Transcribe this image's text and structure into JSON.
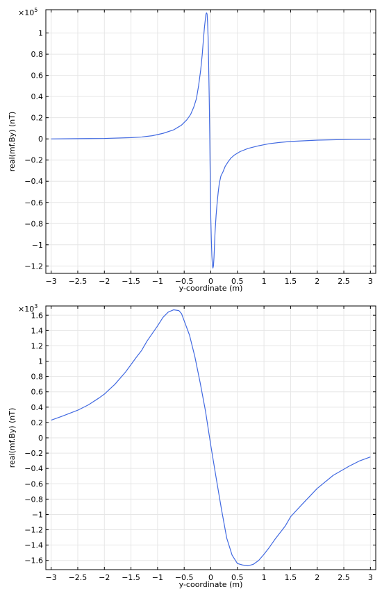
{
  "chart_data": [
    {
      "type": "line",
      "title": "",
      "xlabel": "y-coordinate (m)",
      "ylabel": "real(mf.By) (nT)",
      "multiplier_base": "×10",
      "multiplier_exp": "5",
      "xlim": [
        -3.1,
        3.1
      ],
      "ylim": [
        -1.27,
        1.22
      ],
      "xticks": [
        -3,
        -2.5,
        -2,
        -1.5,
        -1,
        -0.5,
        0,
        0.5,
        1,
        1.5,
        2,
        2.5,
        3
      ],
      "xtick_labels": [
        "−3",
        "−2.5",
        "−2",
        "−1.5",
        "−1",
        "−0.5",
        "0",
        "0.5",
        "1",
        "1.5",
        "2",
        "2.5",
        "3"
      ],
      "yticks": [
        -1.2,
        -1,
        -0.8,
        -0.6,
        -0.4,
        -0.2,
        0,
        0.2,
        0.4,
        0.6,
        0.8,
        1
      ],
      "ytick_labels": [
        "−1.2",
        "−1",
        "−0.8",
        "−0.6",
        "−0.4",
        "−0.2",
        "0",
        "0.2",
        "0.4",
        "0.6",
        "0.8",
        "1"
      ],
      "grid": true,
      "color": "#4169e1",
      "series": [
        {
          "x": [
            -3,
            -2.5,
            -2,
            -1.5,
            -1.3,
            -1.1,
            -0.9,
            -0.7,
            -0.55,
            -0.45,
            -0.38,
            -0.32,
            -0.27,
            -0.23,
            -0.19,
            -0.16,
            -0.14,
            -0.12,
            -0.1,
            -0.09,
            -0.08,
            -0.07,
            -0.06,
            -0.05,
            -0.04,
            -0.03,
            -0.02,
            -0.01,
            0,
            0.01,
            0.02,
            0.03,
            0.04,
            0.05,
            0.06,
            0.07,
            0.08,
            0.1,
            0.12,
            0.14,
            0.16,
            0.19,
            0.23,
            0.27,
            0.32,
            0.38,
            0.45,
            0.55,
            0.7,
            0.9,
            1.1,
            1.3,
            1.5,
            2,
            2.5,
            3
          ],
          "y": [
            0,
            0.002,
            0.004,
            0.012,
            0.018,
            0.03,
            0.052,
            0.085,
            0.13,
            0.18,
            0.23,
            0.3,
            0.38,
            0.5,
            0.65,
            0.8,
            0.93,
            1.05,
            1.14,
            1.18,
            1.19,
            1.18,
            1.1,
            0.95,
            0.7,
            0.4,
            0.05,
            -0.4,
            -0.75,
            -0.95,
            -1.1,
            -1.19,
            -1.22,
            -1.2,
            -1.12,
            -1.0,
            -0.88,
            -0.72,
            -0.6,
            -0.5,
            -0.42,
            -0.35,
            -0.31,
            -0.26,
            -0.22,
            -0.18,
            -0.15,
            -0.12,
            -0.09,
            -0.065,
            -0.045,
            -0.033,
            -0.024,
            -0.012,
            -0.006,
            -0.003
          ]
        }
      ]
    },
    {
      "type": "line",
      "title": "",
      "xlabel": "y-coordinate (m)",
      "ylabel": "real(mf.By) (nT)",
      "multiplier_base": "×10",
      "multiplier_exp": "3",
      "xlim": [
        -3.1,
        3.1
      ],
      "ylim": [
        -1.72,
        1.72
      ],
      "xticks": [
        -3,
        -2.5,
        -2,
        -1.5,
        -1,
        -0.5,
        0,
        0.5,
        1,
        1.5,
        2,
        2.5,
        3
      ],
      "xtick_labels": [
        "−3",
        "−2.5",
        "−2",
        "−1.5",
        "−1",
        "−0.5",
        "0",
        "0.5",
        "1",
        "1.5",
        "2",
        "2.5",
        "3"
      ],
      "yticks": [
        -1.6,
        -1.4,
        -1.2,
        -1,
        -0.8,
        -0.6,
        -0.4,
        -0.2,
        0,
        0.2,
        0.4,
        0.6,
        0.8,
        1,
        1.2,
        1.4,
        1.6
      ],
      "ytick_labels": [
        "−1.6",
        "−1.4",
        "−1.2",
        "−1",
        "−0.8",
        "−0.6",
        "−0.4",
        "−0.2",
        "0",
        "0.2",
        "0.4",
        "0.6",
        "0.8",
        "1",
        "1.2",
        "1.4",
        "1.6"
      ],
      "grid": true,
      "color": "#4169e1",
      "series": [
        {
          "x": [
            -3,
            -2.8,
            -2.5,
            -2.3,
            -2.1,
            -2,
            -1.8,
            -1.6,
            -1.4,
            -1.3,
            -1.2,
            -1,
            -0.9,
            -0.8,
            -0.7,
            -0.6,
            -0.55,
            -0.4,
            -0.3,
            -0.2,
            -0.1,
            0,
            0.1,
            0.2,
            0.3,
            0.4,
            0.5,
            0.6,
            0.7,
            0.8,
            0.9,
            1,
            1.1,
            1.2,
            1.4,
            1.5,
            1.7,
            2,
            2.3,
            2.6,
            2.8,
            3
          ],
          "y": [
            0.23,
            0.28,
            0.36,
            0.43,
            0.52,
            0.57,
            0.7,
            0.86,
            1.05,
            1.14,
            1.26,
            1.46,
            1.57,
            1.64,
            1.67,
            1.66,
            1.62,
            1.34,
            1.06,
            0.72,
            0.35,
            -0.1,
            -0.52,
            -0.93,
            -1.31,
            -1.53,
            -1.64,
            -1.66,
            -1.67,
            -1.65,
            -1.6,
            -1.52,
            -1.43,
            -1.33,
            -1.15,
            -1.03,
            -0.88,
            -0.66,
            -0.49,
            -0.37,
            -0.3,
            -0.25
          ]
        }
      ]
    }
  ]
}
